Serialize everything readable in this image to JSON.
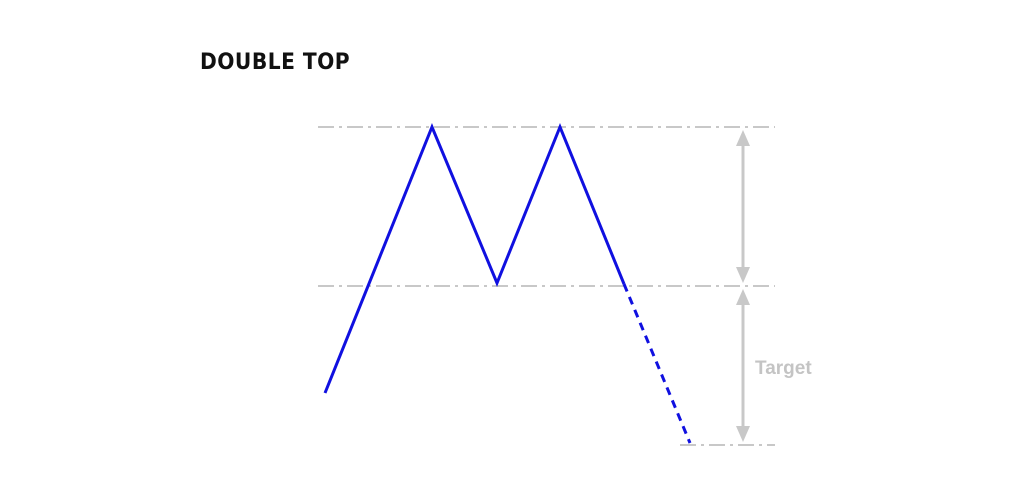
{
  "title": "DOUBLE TOP",
  "target_label": "Target",
  "colors": {
    "price_line": "#1010e0",
    "guide": "#c8c8c8",
    "label": "#c4c4c4"
  }
}
